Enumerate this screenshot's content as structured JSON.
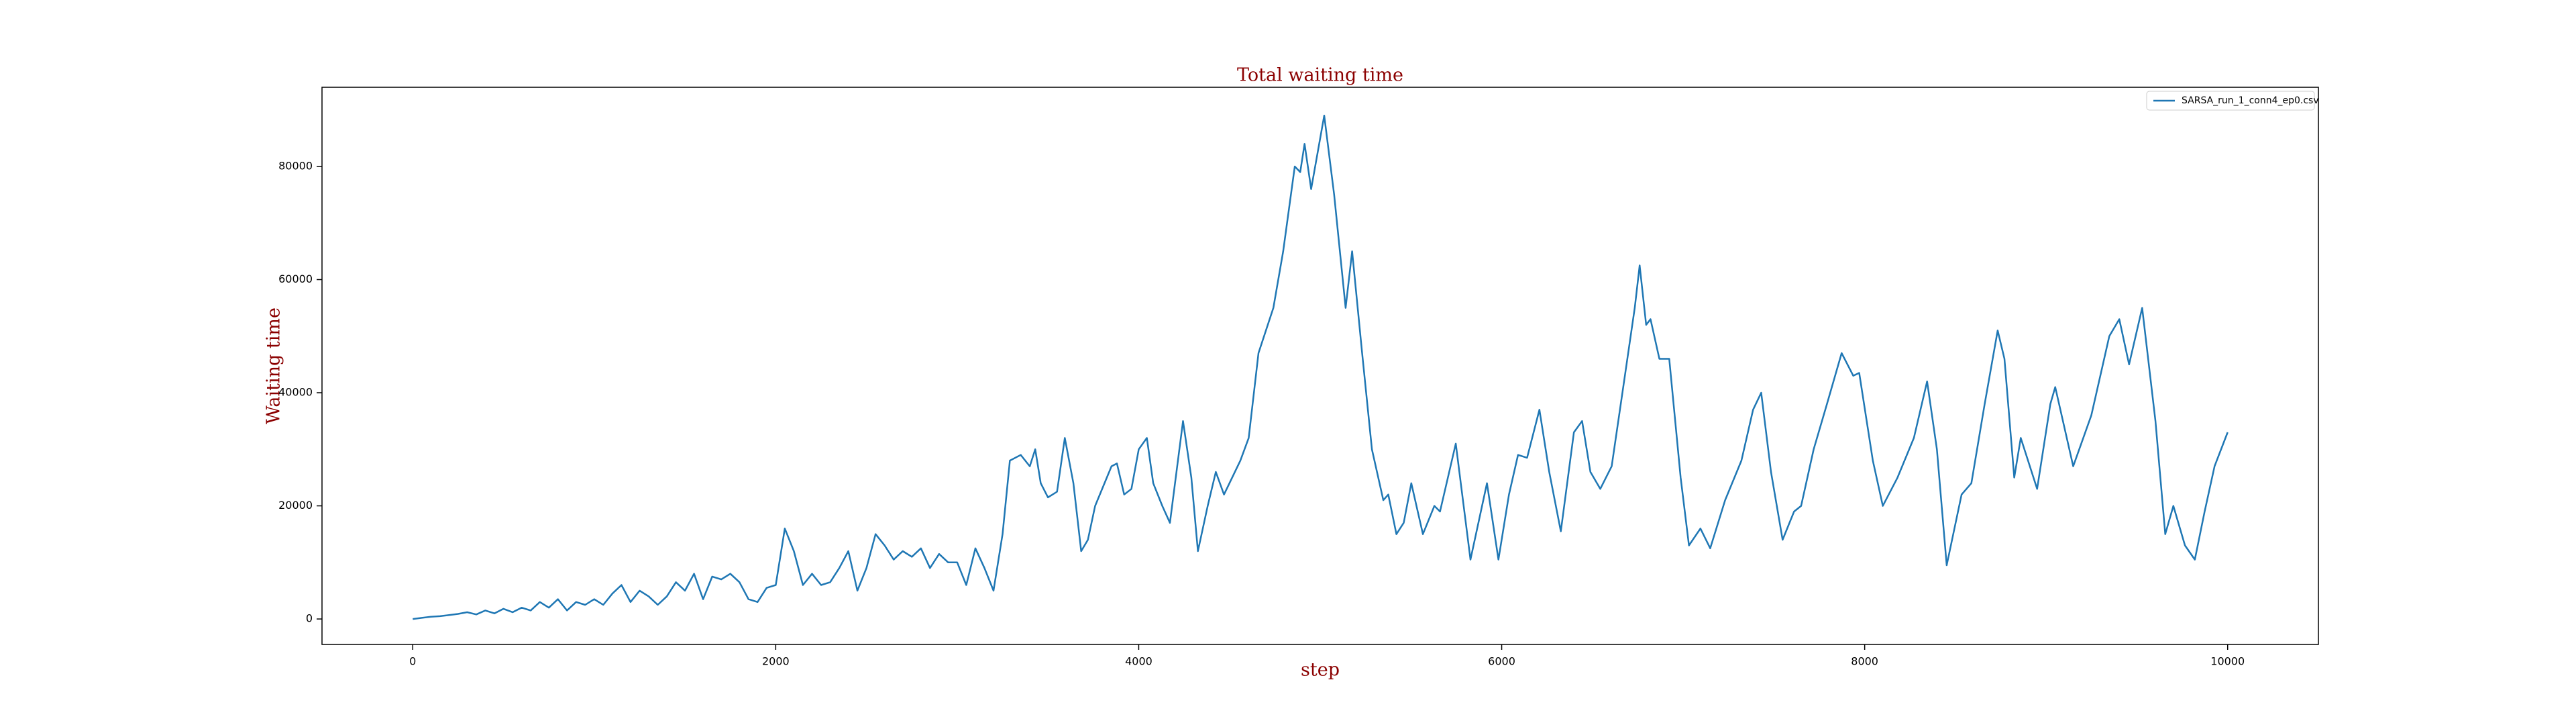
{
  "chart_data": {
    "type": "line",
    "title": "Total waiting time",
    "x_label": "step",
    "y_label": "Waiting time",
    "x": [
      0,
      50,
      100,
      150,
      200,
      250,
      300,
      350,
      400,
      450,
      500,
      550,
      600,
      650,
      700,
      750,
      800,
      850,
      900,
      950,
      1000,
      1050,
      1100,
      1150,
      1200,
      1250,
      1300,
      1350,
      1400,
      1450,
      1500,
      1550,
      1600,
      1650,
      1700,
      1750,
      1800,
      1850,
      1900,
      1950,
      2000,
      2050,
      2100,
      2150,
      2200,
      2250,
      2300,
      2350,
      2400,
      2450,
      2500,
      2550,
      2600,
      2650,
      2700,
      2750,
      2800,
      2850,
      2900,
      2950,
      3000,
      3050,
      3100,
      3150,
      3200,
      3250,
      3290,
      3350,
      3400,
      3430,
      3460,
      3500,
      3550,
      3593,
      3640,
      3683,
      3720,
      3760,
      3850,
      3880,
      3920,
      3960,
      4000,
      4045,
      4080,
      4130,
      4172,
      4244,
      4290,
      4326,
      4380,
      4425,
      4470,
      4560,
      4606,
      4660,
      4742,
      4796,
      4860,
      4890,
      4914,
      4950,
      5022,
      5077,
      5140,
      5176,
      5231,
      5285,
      5348,
      5375,
      5420,
      5460,
      5502,
      5566,
      5629,
      5660,
      5747,
      5828,
      5919,
      5982,
      6040,
      6090,
      6140,
      6208,
      6262,
      6326,
      6398,
      6443,
      6489,
      6543,
      6606,
      6679,
      6733,
      6760,
      6796,
      6820,
      6869,
      6923,
      6986,
      7032,
      7095,
      7149,
      7231,
      7321,
      7385,
      7430,
      7484,
      7548,
      7611,
      7650,
      7719,
      7792,
      7873,
      7937,
      7970,
      8045,
      8100,
      8181,
      8271,
      8344,
      8398,
      8452,
      8534,
      8588,
      8661,
      8733,
      8770,
      8824,
      8860,
      8950,
      9023,
      9050,
      9149,
      9249,
      9348,
      9403,
      9457,
      9529,
      9602,
      9656,
      9701,
      9765,
      9819,
      9873,
      9928,
      10000
    ],
    "series": [
      {
        "name": "SARSA_run_1_conn4_ep0.csv",
        "color": "#1f77b4",
        "values": [
          0,
          200,
          400,
          500,
          700,
          900,
          1200,
          800,
          1500,
          1000,
          1800,
          1200,
          2000,
          1500,
          3000,
          2000,
          3500,
          1500,
          3000,
          2500,
          3500,
          2500,
          4500,
          6000,
          3000,
          5000,
          4000,
          2500,
          4000,
          6500,
          5000,
          8000,
          3500,
          7500,
          7000,
          8000,
          6500,
          3500,
          3000,
          5500,
          6000,
          16000,
          12000,
          6000,
          8000,
          6000,
          6500,
          9000,
          12000,
          5000,
          9000,
          15000,
          13000,
          10500,
          12000,
          11000,
          12500,
          9000,
          11500,
          10000,
          10000,
          6000,
          12500,
          9000,
          5000,
          15000,
          28000,
          29000,
          27000,
          30000,
          24000,
          21500,
          22500,
          32000,
          24000,
          12000,
          14000,
          20000,
          27000,
          27500,
          22000,
          23000,
          30000,
          32000,
          24000,
          20000,
          17000,
          35000,
          25000,
          12000,
          20000,
          26000,
          22000,
          28000,
          32000,
          47000,
          55000,
          65000,
          80000,
          79000,
          84000,
          76000,
          89000,
          75000,
          55000,
          65000,
          47000,
          30000,
          21000,
          22000,
          15000,
          17000,
          24000,
          15000,
          20000,
          19000,
          31000,
          10500,
          24000,
          10500,
          22000,
          29000,
          28500,
          37000,
          26000,
          15500,
          33000,
          35000,
          26000,
          23000,
          27000,
          43000,
          55000,
          62500,
          52000,
          53000,
          46000,
          46000,
          25000,
          13000,
          16000,
          12500,
          21000,
          28000,
          37000,
          40000,
          26000,
          14000,
          19000,
          20000,
          30000,
          38000,
          47000,
          43000,
          43500,
          28000,
          20000,
          25000,
          32000,
          42000,
          30000,
          9500,
          22000,
          24000,
          38000,
          51000,
          46000,
          25000,
          32000,
          23000,
          38000,
          41000,
          27000,
          36000,
          50000,
          53000,
          45000,
          55000,
          35000,
          15000,
          20000,
          13000,
          10500,
          19000,
          27000,
          33000
        ]
      }
    ],
    "xlim": [
      -500,
      10500
    ],
    "ylim": [
      -4500,
      94000
    ],
    "xticks": [
      0,
      2000,
      4000,
      6000,
      8000,
      10000
    ],
    "yticks": [
      0,
      20000,
      40000,
      60000,
      80000
    ],
    "legend": "upper right",
    "grid": false
  }
}
